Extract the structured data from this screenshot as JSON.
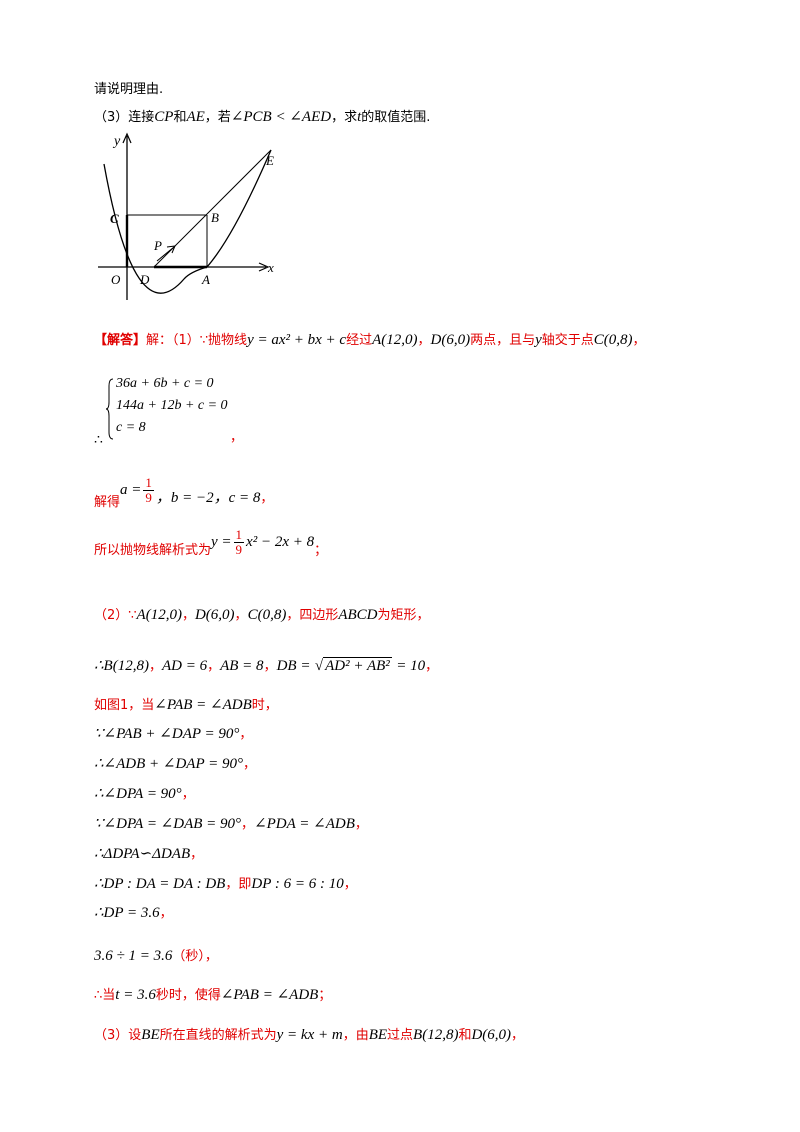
{
  "intro_line": "请说明理由.",
  "q3": {
    "prefix": "（3）连接",
    "cp": "CP",
    "and": "和",
    "ae": "AE",
    "cond_prefix": "，若",
    "cond": "∠PCB < ∠AED",
    "mid": "，求",
    "t": "t",
    "suffix": "的取值范围."
  },
  "figure": {
    "labels": {
      "y": "y",
      "x": "x",
      "O": "O",
      "C": "C",
      "B": "B",
      "E": "E",
      "P": "P",
      "D": "D",
      "A": "A"
    }
  },
  "answer": {
    "tag": "【解答】",
    "lead": "解：（1）∵抛物线",
    "parabola": "y = ax² + bx + c",
    "pass": "经过",
    "ptA": "A(12,0)",
    "comma1": "，",
    "ptD": "D(6,0)",
    "twopts": "两点，且与",
    "yaxis": "y",
    "meet": "轴交于点",
    "ptC": "C(0,8)",
    "comma2": "，",
    "therefore": "∴",
    "sys": [
      "36a + 6b + c = 0",
      "144a + 12b + c = 0",
      "c = 8"
    ],
    "sys_comma": "，",
    "solve_label": "解得",
    "a_eq": "a =",
    "a_num": "1",
    "a_den": "9",
    "b_eq": "，b = −2",
    "c_eq": "，c = 8",
    "c_comma": "，",
    "result_label": "所以抛物线解析式为",
    "y_eq": "y =",
    "r_num": "1",
    "r_den": "9",
    "r_rest": "x² − 2x + 8",
    "semicolon": "；"
  },
  "part2": {
    "l1_prefix": "（2）∵",
    "l1_A": "A(12,0)",
    "l1_D": "D(6,0)",
    "l1_C": "C(0,8)",
    "l1_text": "四边形",
    "l1_abcd": "ABCD",
    "l1_suffix": "为矩形，",
    "l2": "∴B(12,8)，AD = 6，AB = 8，DB = √(AD² + AB²) = 10，",
    "l2_B": "∴B(12,8)",
    "l2_AD": "AD = 6",
    "l2_AB": "AB = 8",
    "l2_DB_pre": "DB =",
    "l2_rad": "AD² + AB²",
    "l2_DB_post": "= 10",
    "l3_pre": "如图1，当",
    "l3_cond": "∠PAB = ∠ADB",
    "l3_post": "时，",
    "l4": "∵∠PAB + ∠DAP = 90°",
    "l5": "∴∠ADB + ∠DAP = 90°",
    "l6": "∴∠DPA = 90°",
    "l7a": "∵∠DPA = ∠DAB = 90°",
    "l7b": "∠PDA = ∠ADB",
    "l8": "∴ΔDPA∽ΔDAB",
    "l9a": "∴DP : DA = DA : DB",
    "l9_ji": "即",
    "l9b": "DP : 6 = 6 : 10",
    "l10": "∴DP = 3.6",
    "l11": "3.6 ÷ 1 = 3.6",
    "l11_unit": "（秒）",
    "l12_pre": "∴当",
    "l12_t": "t = 3.6",
    "l12_mid": "秒时，使得",
    "l12_cond": "∠PAB = ∠ADB",
    "l12_post": "；",
    "comma": "，"
  },
  "part3": {
    "pre": "（3）设",
    "be": "BE",
    "mid1": "所在直线的解析式为",
    "eq": "y = kx + m",
    "mid2": "，由",
    "be2": "BE",
    "mid3": "过点",
    "ptB": "B(12,8)",
    "and": "和",
    "ptD": "D(6,0)",
    "post": "，"
  }
}
